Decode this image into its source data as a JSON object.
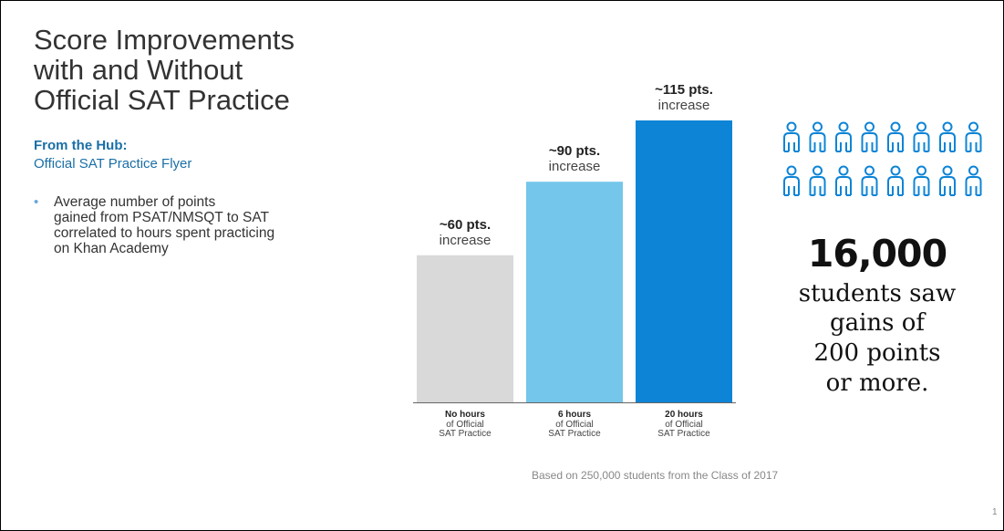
{
  "slide": {
    "title_lines": [
      "Score Improvements",
      "with and Without",
      "Official SAT Practice"
    ],
    "hub_heading": "From the Hub:",
    "hub_link": "Official SAT Practice Flyer",
    "bullet_lines": [
      "Average number of points",
      "gained from PSAT/NMSQT to SAT",
      "correlated to hours spent practicing",
      "on Khan Academy"
    ],
    "source_note": "Based on 250,000 students from the Class of 2017",
    "page_number": "1"
  },
  "stat": {
    "number": "16,000",
    "lines": [
      "students saw",
      "gains of",
      "200 points",
      "or more."
    ],
    "icon": "person-outline-icon",
    "icon_rows": 2,
    "icon_count": 16,
    "icon_color": "#0d84d6"
  },
  "chart_data": {
    "type": "bar",
    "categories": [
      "No hours",
      "6 hours",
      "20 hours"
    ],
    "category_sublabels": [
      "of Official",
      "SAT Practice"
    ],
    "values": [
      60,
      90,
      115
    ],
    "value_labels": [
      "~60 pts.",
      "~90 pts.",
      "~115 pts."
    ],
    "value_sublabel": "increase",
    "colors": [
      "#d9d9d9",
      "#74c6ea",
      "#0d84d6"
    ],
    "ylim": [
      0,
      115
    ],
    "grid": false,
    "title": "",
    "xlabel": "",
    "ylabel": ""
  }
}
